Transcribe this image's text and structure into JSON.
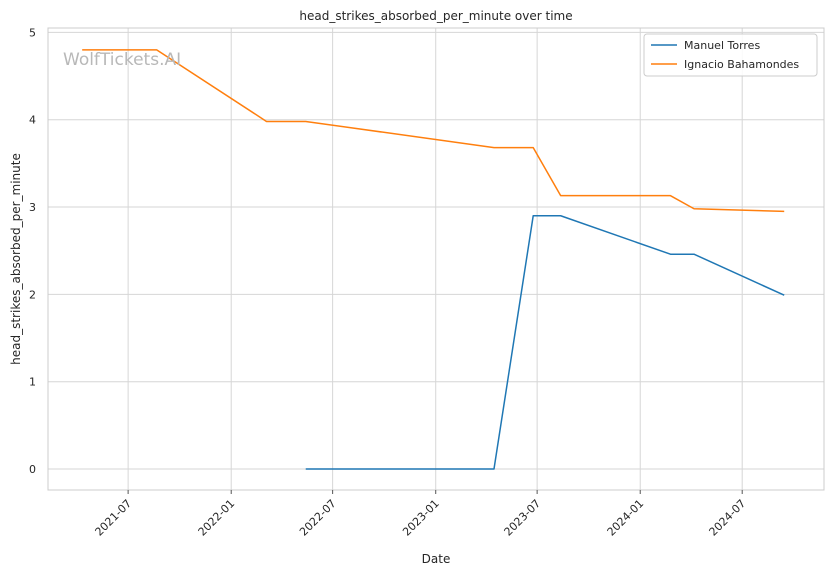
{
  "chart_data": {
    "type": "line",
    "title": "head_strikes_absorbed_per_minute over time",
    "xlabel": "Date",
    "ylabel": "head_strikes_absorbed_per_minute",
    "watermark": "WolfTickets.AI",
    "x_ticks": [
      "2021-07",
      "2022-01",
      "2022-07",
      "2023-01",
      "2023-07",
      "2024-01",
      "2024-07"
    ],
    "y_ticks": [
      0,
      1,
      2,
      3,
      4,
      5
    ],
    "xlim": [
      "2021-02-08",
      "2024-11-24"
    ],
    "ylim": [
      -0.24,
      5.05
    ],
    "grid": true,
    "legend_position": "top-right",
    "series": [
      {
        "name": "Manuel Torres",
        "color": "#1f77b4",
        "points": [
          {
            "x": "2022-05-14",
            "y": 0.0
          },
          {
            "x": "2023-04-15",
            "y": 0.0
          },
          {
            "x": "2023-06-24",
            "y": 2.9
          },
          {
            "x": "2023-08-12",
            "y": 2.9
          },
          {
            "x": "2024-02-24",
            "y": 2.46
          },
          {
            "x": "2024-04-06",
            "y": 2.46
          },
          {
            "x": "2024-09-14",
            "y": 1.99
          }
        ]
      },
      {
        "name": "Ignacio Bahamondes",
        "color": "#ff7f0e",
        "points": [
          {
            "x": "2021-04-10",
            "y": 4.8
          },
          {
            "x": "2021-08-21",
            "y": 4.8
          },
          {
            "x": "2022-03-05",
            "y": 3.98
          },
          {
            "x": "2022-05-14",
            "y": 3.98
          },
          {
            "x": "2023-04-15",
            "y": 3.68
          },
          {
            "x": "2023-06-24",
            "y": 3.68
          },
          {
            "x": "2023-08-12",
            "y": 3.13
          },
          {
            "x": "2024-02-24",
            "y": 3.13
          },
          {
            "x": "2024-04-06",
            "y": 2.98
          },
          {
            "x": "2024-09-14",
            "y": 2.95
          }
        ]
      }
    ]
  }
}
